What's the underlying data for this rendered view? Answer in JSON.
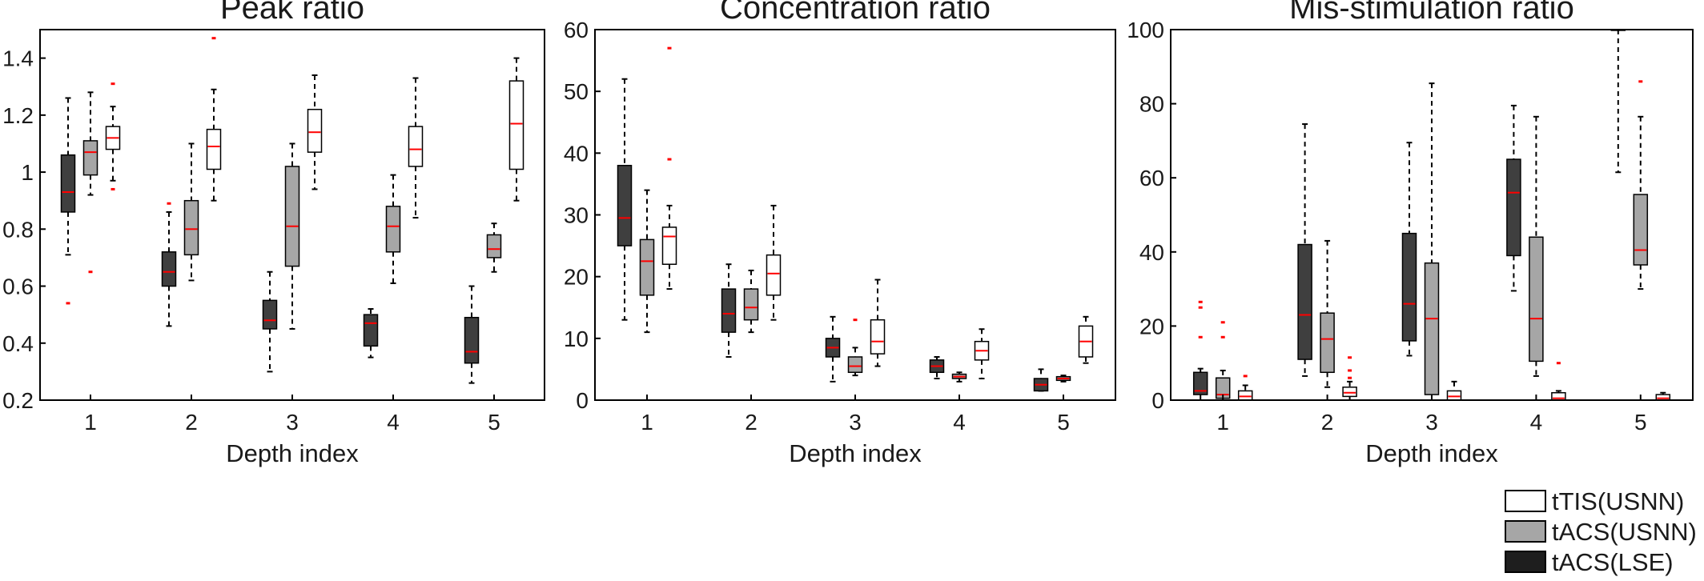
{
  "colors": {
    "tACS(LSE)": "#3f3f3f",
    "tACS(USNN)": "#a6a6a6",
    "tTIS(USNN)": "#ffffff",
    "median": "#ff0000",
    "outlier": "#ff0000",
    "axis": "#000000"
  },
  "legend": {
    "placement": "bottom-right",
    "items": [
      {
        "label": "tTIS(USNN)",
        "color": "#ffffff"
      },
      {
        "label": "tACS(USNN)",
        "color": "#a6a6a6"
      },
      {
        "label": "tACS(LSE)",
        "color": "#1e1e1e"
      }
    ]
  },
  "chart_data": [
    {
      "type": "box",
      "title": "Peak ratio",
      "xlabel": "Depth index",
      "ylabel": "",
      "categories": [
        "1",
        "2",
        "3",
        "4",
        "5"
      ],
      "ylim": [
        0.2,
        1.5
      ],
      "yticks": [
        0.2,
        0.4,
        0.6,
        0.8,
        1,
        1.2,
        1.4
      ],
      "ytick_labels": [
        "0.2",
        "0.4",
        "0.6",
        "0.8",
        "1",
        "1.2",
        "1.4"
      ],
      "grid": false,
      "series": [
        {
          "name": "tACS(LSE)",
          "boxes": [
            {
              "min": 0.71,
              "q1": 0.86,
              "median": 0.93,
              "q3": 1.06,
              "max": 1.26,
              "outliers": [
                0.54
              ]
            },
            {
              "min": 0.46,
              "q1": 0.6,
              "median": 0.65,
              "q3": 0.72,
              "max": 0.86,
              "outliers": [
                0.89
              ]
            },
            {
              "min": 0.3,
              "q1": 0.45,
              "median": 0.48,
              "q3": 0.55,
              "max": 0.65,
              "outliers": []
            },
            {
              "min": 0.35,
              "q1": 0.39,
              "median": 0.47,
              "q3": 0.5,
              "max": 0.52,
              "outliers": []
            },
            {
              "min": 0.26,
              "q1": 0.33,
              "median": 0.37,
              "q3": 0.49,
              "max": 0.6,
              "outliers": []
            }
          ]
        },
        {
          "name": "tACS(USNN)",
          "boxes": [
            {
              "min": 0.92,
              "q1": 0.99,
              "median": 1.07,
              "q3": 1.11,
              "max": 1.28,
              "outliers": [
                0.65
              ]
            },
            {
              "min": 0.62,
              "q1": 0.71,
              "median": 0.8,
              "q3": 0.9,
              "max": 1.1,
              "outliers": []
            },
            {
              "min": 0.45,
              "q1": 0.67,
              "median": 0.81,
              "q3": 1.02,
              "max": 1.1,
              "outliers": []
            },
            {
              "min": 0.61,
              "q1": 0.72,
              "median": 0.81,
              "q3": 0.88,
              "max": 0.99,
              "outliers": []
            },
            {
              "min": 0.65,
              "q1": 0.7,
              "median": 0.73,
              "q3": 0.78,
              "max": 0.82,
              "outliers": []
            }
          ]
        },
        {
          "name": "tTIS(USNN)",
          "boxes": [
            {
              "min": 0.97,
              "q1": 1.08,
              "median": 1.12,
              "q3": 1.16,
              "max": 1.23,
              "outliers": [
                1.31,
                0.94
              ]
            },
            {
              "min": 0.9,
              "q1": 1.01,
              "median": 1.09,
              "q3": 1.15,
              "max": 1.29,
              "outliers": [
                1.47
              ]
            },
            {
              "min": 0.94,
              "q1": 1.07,
              "median": 1.14,
              "q3": 1.22,
              "max": 1.34,
              "outliers": []
            },
            {
              "min": 0.84,
              "q1": 1.02,
              "median": 1.08,
              "q3": 1.16,
              "max": 1.33,
              "outliers": []
            },
            {
              "min": 0.9,
              "q1": 1.01,
              "median": 1.17,
              "q3": 1.32,
              "max": 1.4,
              "outliers": []
            }
          ]
        }
      ]
    },
    {
      "type": "box",
      "title": "Concentration ratio",
      "xlabel": "Depth index",
      "ylabel": "",
      "categories": [
        "1",
        "2",
        "3",
        "4",
        "5"
      ],
      "ylim": [
        0,
        60
      ],
      "yticks": [
        0,
        10,
        20,
        30,
        40,
        50,
        60
      ],
      "ytick_labels": [
        "0",
        "10",
        "20",
        "30",
        "40",
        "50",
        "60"
      ],
      "grid": false,
      "series": [
        {
          "name": "tACS(LSE)",
          "boxes": [
            {
              "min": 13,
              "q1": 25,
              "median": 29.5,
              "q3": 38,
              "max": 52,
              "outliers": []
            },
            {
              "min": 7,
              "q1": 11,
              "median": 14,
              "q3": 18,
              "max": 22,
              "outliers": []
            },
            {
              "min": 3,
              "q1": 7,
              "median": 8.5,
              "q3": 10,
              "max": 13.5,
              "outliers": []
            },
            {
              "min": 3.5,
              "q1": 4.5,
              "median": 5.5,
              "q3": 6.5,
              "max": 7,
              "outliers": []
            },
            {
              "min": 1.5,
              "q1": 1.5,
              "median": 2.5,
              "q3": 3.5,
              "max": 5,
              "outliers": []
            }
          ]
        },
        {
          "name": "tACS(USNN)",
          "boxes": [
            {
              "min": 11,
              "q1": 17,
              "median": 22.5,
              "q3": 26,
              "max": 34,
              "outliers": []
            },
            {
              "min": 11,
              "q1": 13,
              "median": 15,
              "q3": 18,
              "max": 21,
              "outliers": []
            },
            {
              "min": 4,
              "q1": 4.5,
              "median": 5.5,
              "q3": 7,
              "max": 8.5,
              "outliers": [
                13
              ]
            },
            {
              "min": 3,
              "q1": 3.5,
              "median": 3.8,
              "q3": 4.2,
              "max": 4.5,
              "outliers": []
            },
            {
              "min": 3,
              "q1": 3.2,
              "median": 3.5,
              "q3": 3.8,
              "max": 4,
              "outliers": []
            }
          ]
        },
        {
          "name": "tTIS(USNN)",
          "boxes": [
            {
              "min": 18,
              "q1": 22,
              "median": 26.5,
              "q3": 28,
              "max": 31.5,
              "outliers": [
                57,
                39
              ]
            },
            {
              "min": 13,
              "q1": 17,
              "median": 20.5,
              "q3": 23.5,
              "max": 31.5,
              "outliers": []
            },
            {
              "min": 5.5,
              "q1": 7.5,
              "median": 9.5,
              "q3": 13,
              "max": 19.5,
              "outliers": []
            },
            {
              "min": 3.5,
              "q1": 6.5,
              "median": 8,
              "q3": 9.5,
              "max": 11.5,
              "outliers": []
            },
            {
              "min": 6,
              "q1": 7,
              "median": 9.5,
              "q3": 12,
              "max": 13.5,
              "outliers": []
            }
          ]
        }
      ]
    },
    {
      "type": "box",
      "title": "Mis-stimulation ratio",
      "xlabel": "Depth index",
      "ylabel": "",
      "categories": [
        "1",
        "2",
        "3",
        "4",
        "5"
      ],
      "ylim": [
        0,
        100
      ],
      "yticks": [
        0,
        20,
        40,
        60,
        80,
        100
      ],
      "ytick_labels": [
        "0",
        "20",
        "40",
        "60",
        "80",
        "100"
      ],
      "grid": false,
      "series": [
        {
          "name": "tACS(LSE)",
          "boxes": [
            {
              "min": 0,
              "q1": 1.5,
              "median": 2.5,
              "q3": 7.5,
              "max": 8.5,
              "outliers": [
                26.5,
                25,
                17
              ]
            },
            {
              "min": 6.5,
              "q1": 11,
              "median": 23,
              "q3": 42,
              "max": 74.5,
              "outliers": []
            },
            {
              "min": 12,
              "q1": 16,
              "median": 26,
              "q3": 45,
              "max": 69.5,
              "outliers": []
            },
            {
              "min": 29.5,
              "q1": 39,
              "median": 56,
              "q3": 65,
              "max": 79.5,
              "outliers": []
            },
            {
              "min": 61.5,
              "q1": 100,
              "median": 100,
              "q3": 100,
              "max": 100,
              "outliers": []
            }
          ]
        },
        {
          "name": "tACS(USNN)",
          "boxes": [
            {
              "min": 0,
              "q1": 0.5,
              "median": 1.5,
              "q3": 6,
              "max": 8,
              "outliers": [
                21,
                17
              ]
            },
            {
              "min": 3.5,
              "q1": 7.5,
              "median": 16.5,
              "q3": 23.5,
              "max": 43,
              "outliers": []
            },
            {
              "min": 0,
              "q1": 1.5,
              "median": 22,
              "q3": 37,
              "max": 85.5,
              "outliers": []
            },
            {
              "min": 6.5,
              "q1": 10.5,
              "median": 22,
              "q3": 44,
              "max": 76.5,
              "outliers": []
            },
            {
              "min": 30,
              "q1": 36.5,
              "median": 40.5,
              "q3": 55.5,
              "max": 76.5,
              "outliers": [
                86
              ]
            }
          ]
        },
        {
          "name": "tTIS(USNN)",
          "boxes": [
            {
              "min": 0,
              "q1": 0,
              "median": 1,
              "q3": 2.5,
              "max": 4,
              "outliers": [
                6.5
              ]
            },
            {
              "min": 0,
              "q1": 1,
              "median": 2,
              "q3": 3.5,
              "max": 5,
              "outliers": [
                11.5,
                8,
                6
              ]
            },
            {
              "min": 0,
              "q1": 0,
              "median": 1,
              "q3": 2.5,
              "max": 5,
              "outliers": []
            },
            {
              "min": 0,
              "q1": 0,
              "median": 0.5,
              "q3": 2,
              "max": 2.5,
              "outliers": [
                10
              ]
            },
            {
              "min": 0,
              "q1": 0,
              "median": 0.5,
              "q3": 1.5,
              "max": 2,
              "outliers": []
            }
          ]
        }
      ]
    }
  ]
}
